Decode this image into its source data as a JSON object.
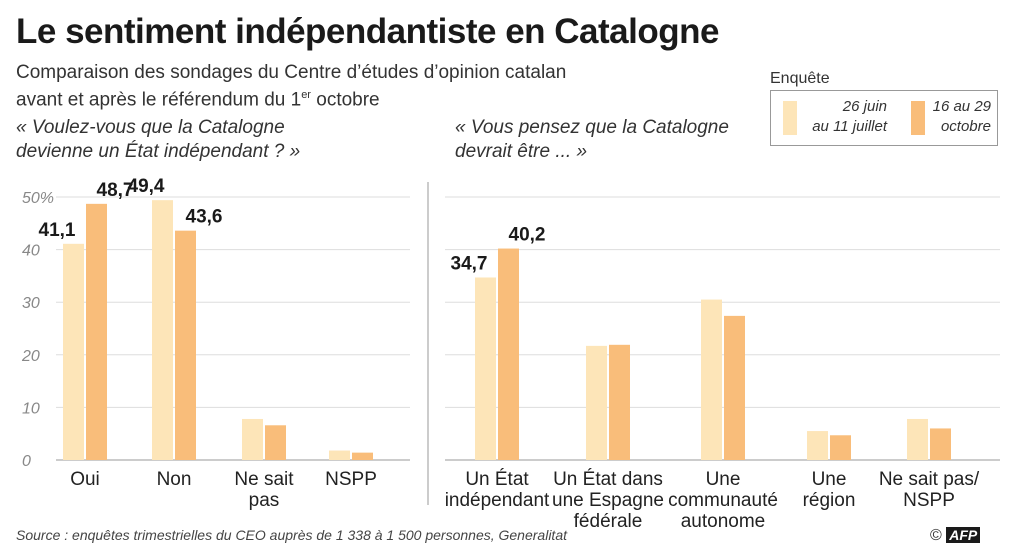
{
  "title": "Le sentiment indépendantiste en Catalogne",
  "subtitle": {
    "line1": "Comparaison des sondages du Centre d’études d’opinion catalan",
    "line2_prefix": "avant et après le référendum du 1",
    "line2_sup": "er",
    "line2_suffix": " octobre"
  },
  "legend": {
    "caption": "Enquête",
    "items": [
      {
        "line1": "26 juin",
        "line2": "au 11 juillet",
        "color": "#fde5b8"
      },
      {
        "line1": "16 au 29",
        "line2": "octobre",
        "color": "#f9bd7a"
      }
    ]
  },
  "colors": {
    "before": "#fde5b8",
    "after": "#f9bd7a",
    "axis": "#999999",
    "grid": "#dddddd"
  },
  "chart_data": [
    {
      "type": "bar",
      "question_line1": "« Voulez-vous que la Catalogne",
      "question_line2": "devienne un État indépendant ? »",
      "categories": [
        [
          "Oui"
        ],
        [
          "Non"
        ],
        [
          "Ne sait",
          "pas"
        ],
        [
          "NSPP"
        ]
      ],
      "series": [
        {
          "name": "26 juin au 11 juillet",
          "values": [
            41.1,
            49.4,
            7.8,
            1.8
          ]
        },
        {
          "name": "16 au 29 octobre",
          "values": [
            48.7,
            43.6,
            6.6,
            1.4
          ]
        }
      ],
      "value_labels": [
        [
          "41,1",
          "48,7"
        ],
        [
          "49,4",
          "43,6"
        ],
        [
          null,
          null
        ],
        [
          null,
          null
        ]
      ],
      "yticks": [
        0,
        10,
        20,
        30,
        40,
        50
      ],
      "ytick_labels": [
        "0",
        "10",
        "20",
        "30",
        "40",
        "50%"
      ],
      "ylim": [
        0,
        50
      ]
    },
    {
      "type": "bar",
      "question_line1": "« Vous pensez que la Catalogne",
      "question_line2": "devrait être ... »",
      "categories": [
        [
          "Un État",
          "indépendant"
        ],
        [
          "Un État dans",
          "une Espagne",
          "fédérale"
        ],
        [
          "Une",
          "communauté",
          "autonome"
        ],
        [
          "Une",
          "région"
        ],
        [
          "Ne sait pas/",
          "NSPP"
        ]
      ],
      "series": [
        {
          "name": "26 juin au 11 juillet",
          "values": [
            34.7,
            21.7,
            30.5,
            5.5,
            7.8
          ]
        },
        {
          "name": "16 au 29 octobre",
          "values": [
            40.2,
            21.9,
            27.4,
            4.7,
            6.0
          ]
        }
      ],
      "value_labels": [
        [
          "34,7",
          "40,2"
        ],
        [
          null,
          null
        ],
        [
          null,
          null
        ],
        [
          null,
          null
        ],
        [
          null,
          null
        ]
      ],
      "ylim": [
        0,
        50
      ]
    }
  ],
  "source": "Source : enquêtes trimestrielles du CEO auprès de 1 338 à 1 500 personnes, Generalitat",
  "credit_symbol": "©",
  "credit": "AFP"
}
